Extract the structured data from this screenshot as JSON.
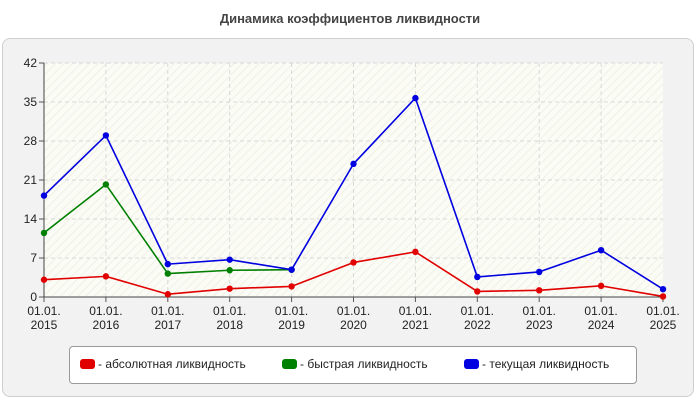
{
  "chart_data": {
    "type": "line",
    "title": "Динамика коэффициентов ликвидности",
    "xlabel": "",
    "ylabel": "",
    "ylim": [
      0,
      42
    ],
    "yticks": [
      0,
      7,
      14,
      21,
      28,
      35,
      42
    ],
    "grid": true,
    "legend_position": "bottom",
    "categories": [
      {
        "line1": "01.01.",
        "line2": "2015"
      },
      {
        "line1": "01.01.",
        "line2": "2016"
      },
      {
        "line1": "01.01.",
        "line2": "2017"
      },
      {
        "line1": "01.01.",
        "line2": "2018"
      },
      {
        "line1": "01.01.",
        "line2": "2019"
      },
      {
        "line1": "01.01.",
        "line2": "2020"
      },
      {
        "line1": "01.01.",
        "line2": "2021"
      },
      {
        "line1": "01.01.",
        "line2": "2022"
      },
      {
        "line1": "01.01.",
        "line2": "2023"
      },
      {
        "line1": "01.01.",
        "line2": "2024"
      },
      {
        "line1": "01.01.",
        "line2": "2025"
      }
    ],
    "series": [
      {
        "name": "- абсолютная ликвидность",
        "color": "#e00000",
        "values": [
          3.1,
          3.7,
          0.5,
          1.5,
          1.9,
          6.2,
          8.1,
          1.0,
          1.2,
          2.0,
          0.1
        ]
      },
      {
        "name": "- быстрая ликвидность",
        "color": "#008000",
        "values": [
          11.5,
          20.2,
          4.2,
          4.8,
          4.9,
          null,
          null,
          null,
          null,
          null,
          null
        ]
      },
      {
        "name": "- текущая ликвидность",
        "color": "#0000e0",
        "values": [
          18.2,
          29.0,
          5.9,
          6.7,
          4.9,
          23.9,
          35.7,
          3.6,
          4.5,
          8.4,
          1.4
        ]
      }
    ]
  }
}
